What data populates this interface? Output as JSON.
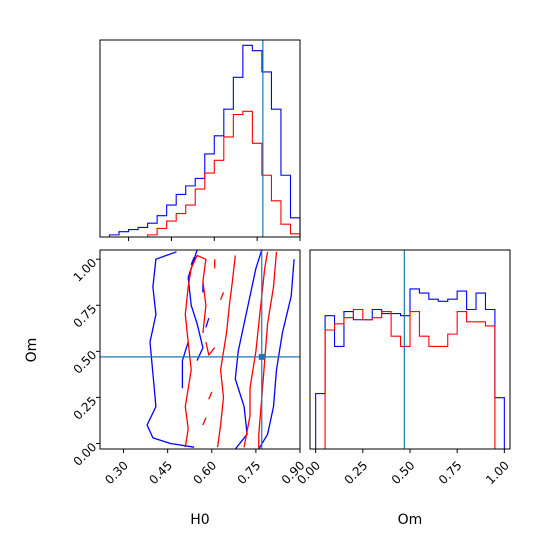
{
  "chart_data": [
    {
      "type": "histogram",
      "panel": "H0 marginal",
      "x_bins": [
        0.2,
        0.2333,
        0.2667,
        0.3,
        0.3333,
        0.3667,
        0.4,
        0.4333,
        0.4667,
        0.5,
        0.5333,
        0.5667,
        0.6,
        0.6333,
        0.6667,
        0.7,
        0.7333,
        0.7667,
        0.8,
        0.8333,
        0.8667,
        0.9
      ],
      "xlim": [
        0.2,
        0.9
      ],
      "ylim": [
        0,
        185
      ],
      "truth": 0.77,
      "series": [
        {
          "color": "#0000ff",
          "values": [
            0,
            2,
            5,
            7,
            9,
            13,
            20,
            30,
            40,
            48,
            55,
            78,
            95,
            120,
            150,
            180,
            175,
            155,
            120,
            58,
            18
          ]
        },
        {
          "color": "#ff0000",
          "values": [
            0,
            0,
            0,
            0,
            0,
            2,
            8,
            15,
            22,
            30,
            45,
            60,
            72,
            94,
            115,
            118,
            88,
            58,
            34,
            12,
            3
          ]
        }
      ]
    },
    {
      "type": "histogram",
      "panel": "Om marginal",
      "x_bins": [
        0.0,
        0.05,
        0.1,
        0.15,
        0.2,
        0.25,
        0.3,
        0.35,
        0.4,
        0.45,
        0.5,
        0.55,
        0.6,
        0.65,
        0.7,
        0.75,
        0.8,
        0.85,
        0.9,
        0.95,
        1.0
      ],
      "xlim": [
        -0.03,
        1.03
      ],
      "ylim": [
        0,
        97
      ],
      "truth": 0.47,
      "series": [
        {
          "color": "#0000ff",
          "values": [
            27,
            65,
            50,
            67,
            63,
            63,
            68,
            66,
            66,
            65,
            78,
            76,
            73,
            72,
            73,
            77,
            68,
            76,
            68,
            25
          ]
        },
        {
          "color": "#ff0000",
          "values": [
            0,
            58,
            61,
            64,
            68,
            63,
            64,
            67,
            55,
            50,
            67,
            55,
            50,
            50,
            56,
            67,
            62,
            62,
            60,
            0
          ]
        }
      ]
    },
    {
      "type": "contour",
      "panel": "H0 vs Om joint",
      "xlim": [
        0.22,
        0.9
      ],
      "ylim": [
        -0.03,
        1.05
      ],
      "truth": {
        "x": 0.77,
        "y": 0.47
      },
      "series": [
        {
          "color": "#0000ff",
          "contours": [
            [
              [
                0.48,
                1.04
              ],
              [
                0.41,
                1.0
              ],
              [
                0.4,
                0.85
              ],
              [
                0.41,
                0.7
              ],
              [
                0.39,
                0.55
              ],
              [
                0.4,
                0.38
              ],
              [
                0.41,
                0.2
              ],
              [
                0.38,
                0.1
              ],
              [
                0.4,
                0.03
              ],
              [
                0.46,
                0.0
              ],
              [
                0.54,
                -0.02
              ]
            ],
            [
              [
                0.68,
                -0.03
              ],
              [
                0.72,
                0.05
              ],
              [
                0.71,
                0.2
              ],
              [
                0.68,
                0.35
              ],
              [
                0.69,
                0.5
              ],
              [
                0.71,
                0.65
              ],
              [
                0.73,
                0.8
              ],
              [
                0.75,
                0.95
              ],
              [
                0.77,
                1.05
              ]
            ],
            [
              [
                0.88,
                1.0
              ],
              [
                0.87,
                0.8
              ],
              [
                0.84,
                0.6
              ],
              [
                0.82,
                0.4
              ],
              [
                0.81,
                0.2
              ],
              [
                0.79,
                0.05
              ],
              [
                0.76,
                -0.03
              ]
            ],
            [
              [
                0.55,
                0.45
              ],
              [
                0.57,
                0.52
              ],
              [
                0.55,
                0.65
              ],
              [
                0.53,
                0.75
              ],
              [
                0.52,
                0.9
              ],
              [
                0.55,
                1.05
              ]
            ],
            [
              [
                0.5,
                0.3
              ],
              [
                0.5,
                0.45
              ],
              [
                0.52,
                0.55
              ]
            ],
            [
              [
                0.58,
                0.63
              ],
              [
                0.59,
                0.68
              ]
            ],
            [
              [
                0.57,
                0.82
              ],
              [
                0.57,
                0.87
              ]
            ],
            [
              [
                0.53,
                0.97
              ],
              [
                0.54,
                1.01
              ]
            ]
          ]
        },
        {
          "color": "#ff0000",
          "contours": [
            [
              [
                0.51,
                -0.02
              ],
              [
                0.52,
                0.08
              ],
              [
                0.51,
                0.2
              ],
              [
                0.53,
                0.4
              ],
              [
                0.52,
                0.55
              ],
              [
                0.51,
                0.7
              ],
              [
                0.52,
                0.85
              ],
              [
                0.53,
                0.95
              ],
              [
                0.55,
                1.02
              ],
              [
                0.58,
                1.0
              ],
              [
                0.57,
                0.88
              ],
              [
                0.58,
                0.75
              ],
              [
                0.57,
                0.6
              ]
            ],
            [
              [
                0.62,
                -0.02
              ],
              [
                0.63,
                0.1
              ],
              [
                0.64,
                0.25
              ],
              [
                0.63,
                0.4
              ],
              [
                0.65,
                0.6
              ],
              [
                0.66,
                0.75
              ],
              [
                0.67,
                0.88
              ],
              [
                0.68,
                1.02
              ]
            ],
            [
              [
                0.71,
                -0.02
              ],
              [
                0.73,
                0.15
              ],
              [
                0.73,
                0.3
              ],
              [
                0.75,
                0.5
              ],
              [
                0.76,
                0.65
              ],
              [
                0.77,
                0.8
              ],
              [
                0.78,
                0.95
              ],
              [
                0.79,
                1.04
              ]
            ],
            [
              [
                0.82,
                1.04
              ],
              [
                0.81,
                0.85
              ],
              [
                0.79,
                0.65
              ],
              [
                0.78,
                0.45
              ],
              [
                0.77,
                0.25
              ],
              [
                0.76,
                0.05
              ],
              [
                0.76,
                -0.03
              ]
            ],
            [
              [
                0.61,
                0.95
              ],
              [
                0.61,
                1.0
              ]
            ],
            [
              [
                0.63,
                0.78
              ],
              [
                0.64,
                0.82
              ]
            ],
            [
              [
                0.58,
                0.55
              ],
              [
                0.59,
                0.48
              ],
              [
                0.61,
                0.52
              ]
            ],
            [
              [
                0.59,
                0.24
              ],
              [
                0.6,
                0.28
              ]
            ],
            [
              [
                0.57,
                0.1
              ],
              [
                0.58,
                0.14
              ]
            ]
          ]
        }
      ]
    }
  ],
  "axes": {
    "h0_ticks": [
      "0.30",
      "0.45",
      "0.60",
      "0.75",
      "0.90"
    ],
    "om_ticks": [
      "0.00",
      "0.25",
      "0.50",
      "0.75",
      "1.00"
    ],
    "xlabel_left": "H0",
    "xlabel_right": "Om",
    "ylabel_left": "Om"
  },
  "truth_color": "#1f77b4"
}
